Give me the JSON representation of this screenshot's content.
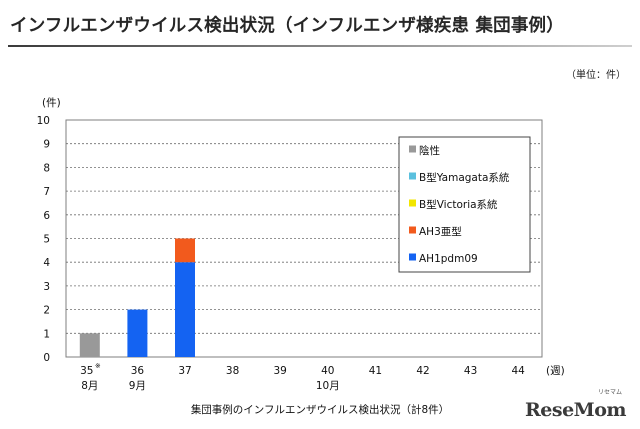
{
  "header": {
    "title": "インフルエンザウイルス検出状況（インフルエンザ様疾患 集団事例）",
    "unit_note": "（単位：件）"
  },
  "caption": "集団事例のインフルエンザウイルス検出状況（計8件）",
  "logo": {
    "text": "ReseMom",
    "sub": "リセマム"
  },
  "chart_data": {
    "type": "bar",
    "stacked": true,
    "ylabel": "(件)",
    "xlabel": "(週)",
    "ylim": [
      0,
      10
    ],
    "yticks": [
      0,
      1,
      2,
      3,
      4,
      5,
      6,
      7,
      8,
      9,
      10
    ],
    "grid": true,
    "legend_position": "right",
    "categories": [
      "35※",
      "36",
      "37",
      "38",
      "39",
      "40",
      "41",
      "42",
      "43",
      "44"
    ],
    "month_labels": [
      "8月",
      "9月",
      "",
      "",
      "",
      "10月",
      "",
      "",
      "",
      ""
    ],
    "series": [
      {
        "name": "陰性",
        "color": "#999999",
        "values": [
          1,
          0,
          0,
          0,
          0,
          0,
          0,
          0,
          0,
          0
        ]
      },
      {
        "name": "B型Yamagata系統",
        "color": "#5bc0de",
        "values": [
          0,
          0,
          0,
          0,
          0,
          0,
          0,
          0,
          0,
          0
        ]
      },
      {
        "name": "B型Victoria系統",
        "color": "#f2e600",
        "values": [
          0,
          0,
          0,
          0,
          0,
          0,
          0,
          0,
          0,
          0
        ]
      },
      {
        "name": "AH3亜型",
        "color": "#f25a1d",
        "values": [
          0,
          0,
          1,
          0,
          0,
          0,
          0,
          0,
          0,
          0
        ]
      },
      {
        "name": "AH1pdm09",
        "color": "#1463f2",
        "values": [
          0,
          2,
          4,
          0,
          0,
          0,
          0,
          0,
          0,
          0
        ]
      }
    ],
    "stack_order": [
      "AH1pdm09",
      "AH3亜型",
      "B型Victoria系統",
      "B型Yamagata系統",
      "陰性"
    ]
  }
}
